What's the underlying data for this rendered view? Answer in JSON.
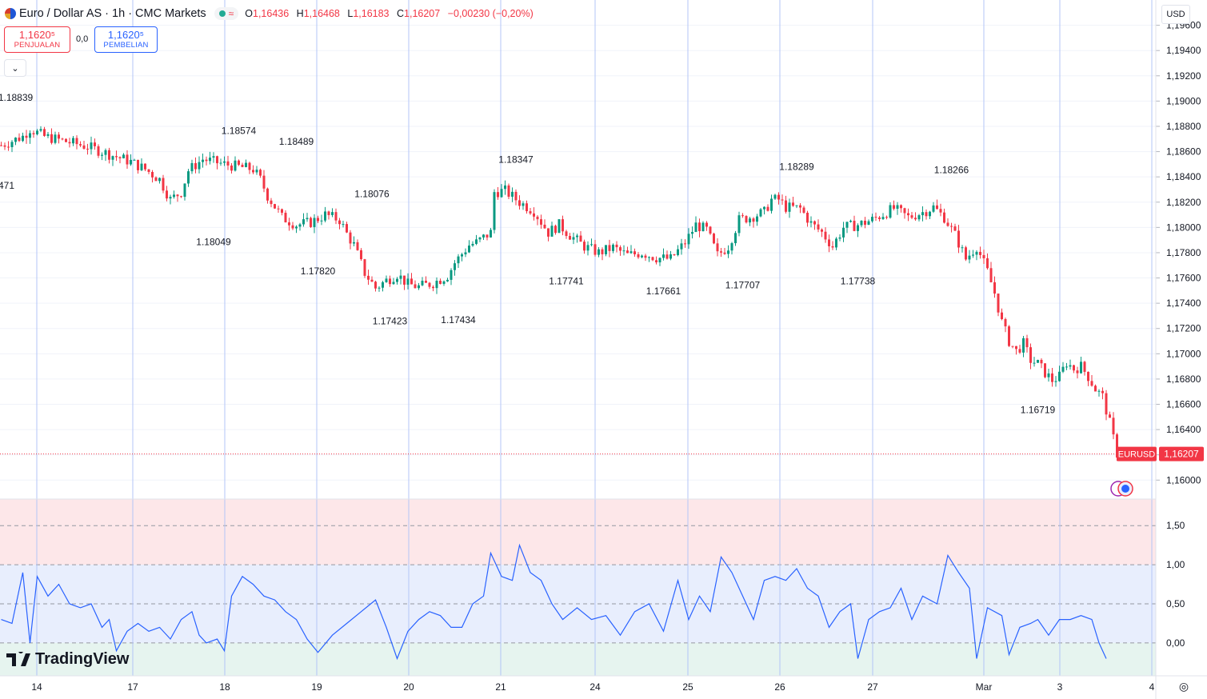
{
  "header": {
    "title": "Euro / Dollar AS · 1h · CMC Markets",
    "wave_glyph": "≈",
    "ohlc": [
      {
        "k": "O",
        "v": "1,16436"
      },
      {
        "k": "H",
        "v": "1,16468"
      },
      {
        "k": "L",
        "v": "1,16183"
      },
      {
        "k": "C",
        "v": "1,16207"
      },
      {
        "k": "",
        "v": "−0,00230 (−0,20%)"
      }
    ]
  },
  "trade": {
    "sell_price": "1,1620⁵",
    "sell_label": "PENJUALAN",
    "spread": "0,0",
    "buy_price": "1,1620⁵",
    "buy_label": "PEMBELIAN"
  },
  "toolbar": {
    "collapse_glyph": "⌄",
    "currency": "USD",
    "settings_glyph": "◎"
  },
  "branding": {
    "name": "TradingView"
  },
  "colors": {
    "up": "#089981",
    "down": "#f23645",
    "indicator": "#2962ff"
  },
  "chart_data": [
    {
      "type": "candlestick",
      "title": "",
      "symbol_tag": "EURUSD",
      "last_price_label": "1,16207",
      "last_price": 1.16207,
      "ylim": [
        1.1585,
        1.198
      ],
      "y_ticks": [
        1.16,
        1.162,
        1.164,
        1.166,
        1.168,
        1.17,
        1.172,
        1.174,
        1.176,
        1.178,
        1.18,
        1.182,
        1.184,
        1.186,
        1.188,
        1.19,
        1.192,
        1.194,
        1.196
      ],
      "y_tick_labels": [
        "1,16000",
        "1,16200",
        "1,16400",
        "1,16600",
        "1,16800",
        "1,17000",
        "1,17200",
        "1,17400",
        "1,17600",
        "1,17800",
        "1,18000",
        "1,18200",
        "1,18400",
        "1,18600",
        "1,18800",
        "1,19000",
        "1,19200",
        "1,19400",
        "1,19600"
      ],
      "x_tick_labels": [
        "14",
        "17",
        "18",
        "19",
        "20",
        "21",
        "24",
        "25",
        "26",
        "27",
        "Mar",
        "3",
        "4"
      ],
      "price_path": [
        [
          0,
          1.1865
        ],
        [
          6,
          1.1872
        ],
        [
          8,
          1.1878
        ],
        [
          12,
          1.1872
        ],
        [
          18,
          1.1868
        ],
        [
          24,
          1.1864
        ],
        [
          30,
          1.1858
        ],
        [
          36,
          1.1852
        ],
        [
          40,
          1.1846
        ],
        [
          44,
          1.1838
        ],
        [
          47,
          1.1822
        ],
        [
          50,
          1.1828
        ],
        [
          52,
          1.1845
        ],
        [
          56,
          1.1854
        ],
        [
          62,
          1.185
        ],
        [
          66,
          1.1848
        ],
        [
          70,
          1.1846
        ],
        [
          72,
          1.1838
        ],
        [
          74,
          1.1825
        ],
        [
          78,
          1.1808
        ],
        [
          82,
          1.1802
        ],
        [
          86,
          1.1804
        ],
        [
          90,
          1.181
        ],
        [
          94,
          1.1806
        ],
        [
          96,
          1.1795
        ],
        [
          98,
          1.1786
        ],
        [
          101,
          1.1764
        ],
        [
          104,
          1.1752
        ],
        [
          107,
          1.1758
        ],
        [
          110,
          1.1763
        ],
        [
          113,
          1.1755
        ],
        [
          116,
          1.1753
        ],
        [
          120,
          1.1756
        ],
        [
          124,
          1.1762
        ],
        [
          126,
          1.1772
        ],
        [
          130,
          1.1786
        ],
        [
          132,
          1.1788
        ],
        [
          136,
          1.1796
        ],
        [
          137,
          1.1828
        ],
        [
          140,
          1.1829
        ],
        [
          144,
          1.182
        ],
        [
          148,
          1.1813
        ],
        [
          152,
          1.1796
        ],
        [
          155,
          1.1802
        ],
        [
          158,
          1.1794
        ],
        [
          162,
          1.1785
        ],
        [
          166,
          1.178
        ],
        [
          170,
          1.1784
        ],
        [
          174,
          1.1778
        ],
        [
          178,
          1.178
        ],
        [
          182,
          1.1776
        ],
        [
          186,
          1.1775
        ],
        [
          190,
          1.1788
        ],
        [
          193,
          1.1802
        ],
        [
          196,
          1.1798
        ],
        [
          199,
          1.1778
        ],
        [
          202,
          1.1785
        ],
        [
          205,
          1.1806
        ],
        [
          208,
          1.1808
        ],
        [
          212,
          1.1812
        ],
        [
          214,
          1.1822
        ],
        [
          216,
          1.1822
        ],
        [
          218,
          1.1816
        ],
        [
          222,
          1.1815
        ],
        [
          225,
          1.1803
        ],
        [
          228,
          1.1796
        ],
        [
          231,
          1.1785
        ],
        [
          234,
          1.18
        ],
        [
          238,
          1.1802
        ],
        [
          242,
          1.1806
        ],
        [
          244,
          1.1809
        ],
        [
          248,
          1.1815
        ],
        [
          252,
          1.1808
        ],
        [
          256,
          1.1812
        ],
        [
          259,
          1.1816
        ],
        [
          262,
          1.1808
        ],
        [
          265,
          1.1794
        ],
        [
          268,
          1.1775
        ],
        [
          271,
          1.1785
        ],
        [
          274,
          1.1765
        ],
        [
          276,
          1.1748
        ],
        [
          278,
          1.1725
        ],
        [
          280,
          1.171
        ],
        [
          282,
          1.1702
        ],
        [
          284,
          1.1708
        ],
        [
          286,
          1.1695
        ],
        [
          288,
          1.1692
        ],
        [
          290,
          1.1685
        ],
        [
          292,
          1.1679
        ],
        [
          294,
          1.1682
        ],
        [
          296,
          1.1693
        ],
        [
          298,
          1.1688
        ],
        [
          300,
          1.169
        ],
        [
          302,
          1.1682
        ],
        [
          304,
          1.1672
        ],
        [
          306,
          1.1666
        ],
        [
          308,
          1.1645
        ],
        [
          310,
          1.1621
        ]
      ],
      "candle_count": 311,
      "x_tick_bar_index": [
        10,
        36,
        61,
        86,
        111,
        136,
        162,
        187,
        212,
        237,
        263,
        284,
        309
      ],
      "extremes": [
        {
          "bar": 4,
          "price": 1.18839,
          "label": "1.18839",
          "pos": "high"
        },
        {
          "bar": 59,
          "price": 1.18049,
          "label": "1.18049",
          "pos": "low"
        },
        {
          "bar": 66,
          "price": 1.18574,
          "label": "1.18574",
          "pos": "high"
        },
        {
          "bar": 82,
          "price": 1.18489,
          "label": "1.18489",
          "pos": "high"
        },
        {
          "bar": 88,
          "price": 1.1782,
          "label": "1.17820",
          "pos": "low"
        },
        {
          "bar": 103,
          "price": 1.18076,
          "label": "1.18076",
          "pos": "high"
        },
        {
          "bar": 108,
          "price": 1.17423,
          "label": "1.17423",
          "pos": "low"
        },
        {
          "bar": 127,
          "price": 1.17434,
          "label": "1.17434",
          "pos": "low"
        },
        {
          "bar": 143,
          "price": 1.18347,
          "label": "1.18347",
          "pos": "high"
        },
        {
          "bar": 157,
          "price": 1.17741,
          "label": "1.17741",
          "pos": "low"
        },
        {
          "bar": 184,
          "price": 1.17661,
          "label": "1.17661",
          "pos": "low"
        },
        {
          "bar": 206,
          "price": 1.17707,
          "label": "1.17707",
          "pos": "low"
        },
        {
          "bar": 221,
          "price": 1.18289,
          "label": "1.18289",
          "pos": "high"
        },
        {
          "bar": 238,
          "price": 1.17738,
          "label": "1.17738",
          "pos": "low"
        },
        {
          "bar": 264,
          "price": 1.18266,
          "label": "1.18266",
          "pos": "high"
        },
        {
          "bar": 288,
          "price": 1.16719,
          "label": "1.16719",
          "pos": "low"
        }
      ],
      "partial_left_label": "471"
    },
    {
      "type": "line",
      "title": "",
      "ylim": [
        -0.42,
        1.84
      ],
      "y_ticks": [
        0,
        0.5,
        1,
        1.5
      ],
      "y_tick_labels": [
        "0,00",
        "0,50",
        "1,00",
        "1,50"
      ],
      "zones": [
        {
          "from": 1.0,
          "to": 1.84,
          "color": "#fde7e9"
        },
        {
          "from": 0.0,
          "to": 1.0,
          "color": "#e8eefd"
        },
        {
          "from": -0.42,
          "to": 0.0,
          "color": "#e6f4ef"
        }
      ],
      "dashed_levels": [
        1.0,
        0.5,
        0.0
      ],
      "path": [
        [
          0,
          0.3
        ],
        [
          3,
          0.25
        ],
        [
          6,
          0.9
        ],
        [
          8,
          0.0
        ],
        [
          10,
          0.85
        ],
        [
          13,
          0.6
        ],
        [
          16,
          0.75
        ],
        [
          19,
          0.5
        ],
        [
          22,
          0.45
        ],
        [
          25,
          0.5
        ],
        [
          28,
          0.2
        ],
        [
          30,
          0.3
        ],
        [
          32,
          -0.1
        ],
        [
          35,
          0.15
        ],
        [
          38,
          0.25
        ],
        [
          41,
          0.15
        ],
        [
          44,
          0.2
        ],
        [
          47,
          0.05
        ],
        [
          50,
          0.3
        ],
        [
          53,
          0.4
        ],
        [
          55,
          0.1
        ],
        [
          57,
          0.0
        ],
        [
          60,
          0.05
        ],
        [
          62,
          -0.1
        ],
        [
          64,
          0.6
        ],
        [
          67,
          0.85
        ],
        [
          70,
          0.75
        ],
        [
          73,
          0.6
        ],
        [
          76,
          0.55
        ],
        [
          79,
          0.4
        ],
        [
          82,
          0.3
        ],
        [
          85,
          0.05
        ],
        [
          88,
          -0.12
        ],
        [
          92,
          0.1
        ],
        [
          96,
          0.25
        ],
        [
          100,
          0.4
        ],
        [
          104,
          0.55
        ],
        [
          107,
          0.2
        ],
        [
          110,
          -0.2
        ],
        [
          113,
          0.15
        ],
        [
          116,
          0.3
        ],
        [
          119,
          0.4
        ],
        [
          122,
          0.35
        ],
        [
          125,
          0.2
        ],
        [
          128,
          0.2
        ],
        [
          131,
          0.5
        ],
        [
          134,
          0.6
        ],
        [
          136,
          1.15
        ],
        [
          139,
          0.85
        ],
        [
          142,
          0.8
        ],
        [
          144,
          1.25
        ],
        [
          147,
          0.9
        ],
        [
          150,
          0.8
        ],
        [
          153,
          0.5
        ],
        [
          156,
          0.3
        ],
        [
          160,
          0.45
        ],
        [
          164,
          0.3
        ],
        [
          168,
          0.35
        ],
        [
          172,
          0.1
        ],
        [
          176,
          0.4
        ],
        [
          180,
          0.5
        ],
        [
          184,
          0.15
        ],
        [
          188,
          0.8
        ],
        [
          191,
          0.3
        ],
        [
          194,
          0.6
        ],
        [
          197,
          0.4
        ],
        [
          200,
          1.1
        ],
        [
          203,
          0.9
        ],
        [
          206,
          0.6
        ],
        [
          209,
          0.3
        ],
        [
          212,
          0.8
        ],
        [
          215,
          0.85
        ],
        [
          218,
          0.8
        ],
        [
          221,
          0.95
        ],
        [
          224,
          0.7
        ],
        [
          227,
          0.6
        ],
        [
          230,
          0.2
        ],
        [
          233,
          0.4
        ],
        [
          236,
          0.5
        ],
        [
          238,
          -0.2
        ],
        [
          241,
          0.3
        ],
        [
          244,
          0.4
        ],
        [
          247,
          0.45
        ],
        [
          250,
          0.7
        ],
        [
          253,
          0.3
        ],
        [
          256,
          0.6
        ],
        [
          260,
          0.5
        ],
        [
          263,
          1.12
        ],
        [
          266,
          0.9
        ],
        [
          269,
          0.7
        ],
        [
          271,
          -0.2
        ],
        [
          274,
          0.45
        ],
        [
          278,
          0.35
        ],
        [
          280,
          -0.15
        ],
        [
          283,
          0.2
        ],
        [
          286,
          0.25
        ],
        [
          288,
          0.3
        ],
        [
          291,
          0.1
        ],
        [
          294,
          0.3
        ],
        [
          297,
          0.3
        ],
        [
          300,
          0.35
        ],
        [
          303,
          0.3
        ],
        [
          305,
          0.0
        ],
        [
          307,
          -0.2
        ]
      ]
    }
  ]
}
